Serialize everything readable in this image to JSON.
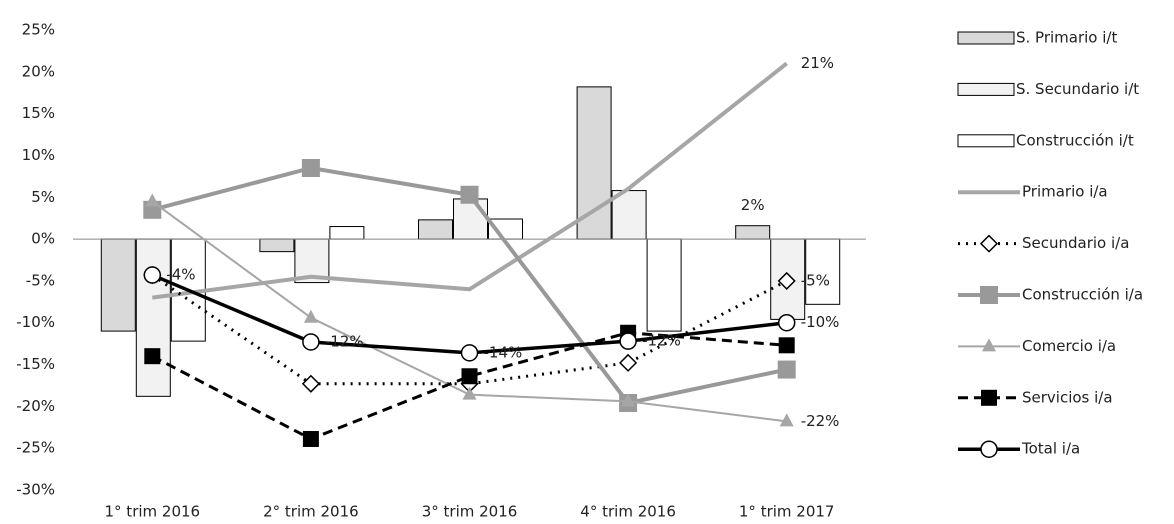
{
  "chart_data": {
    "type": "combo",
    "categories": [
      "1° trim 2016",
      "2° trim 2016",
      "3° trim 2016",
      "4° trim 2016",
      "1° trim 2017"
    ],
    "ylim": [
      -30,
      25
    ],
    "yticks": [
      {
        "value": -30,
        "label": "-30%"
      },
      {
        "value": -25,
        "label": "-25%"
      },
      {
        "value": -20,
        "label": "-20%"
      },
      {
        "value": -15,
        "label": "-15%"
      },
      {
        "value": -10,
        "label": "-10%"
      },
      {
        "value": -5,
        "label": "-5%"
      },
      {
        "value": 0,
        "label": "0%"
      },
      {
        "value": 5,
        "label": "5%"
      },
      {
        "value": 10,
        "label": "10%"
      },
      {
        "value": 15,
        "label": "15%"
      },
      {
        "value": 20,
        "label": "20%"
      },
      {
        "value": 25,
        "label": "25%"
      }
    ],
    "legend": "right",
    "series": [
      {
        "name": "S. Primario i/t",
        "type": "bar",
        "color": "#d9d9d9",
        "values": [
          -11,
          -1.5,
          2.3,
          18.2,
          1.6
        ],
        "value_labels": [
          null,
          null,
          null,
          null,
          "2%"
        ]
      },
      {
        "name": "S. Secundario i/t",
        "type": "bar",
        "color": "#f2f2f2",
        "values": [
          -18.8,
          -5.2,
          4.8,
          5.8,
          -9.6
        ]
      },
      {
        "name": "Construcción i/t",
        "type": "bar",
        "color": "#ffffff",
        "values": [
          -12.2,
          1.5,
          2.4,
          -11,
          -7.8
        ]
      },
      {
        "name": "Primario i/a",
        "type": "line",
        "color": "#a6a6a6",
        "width": 4,
        "marker": "none",
        "values": [
          -7,
          -4.5,
          -6,
          6,
          21
        ],
        "value_labels": [
          null,
          null,
          null,
          null,
          "21%"
        ]
      },
      {
        "name": "Secundario i/a",
        "type": "line",
        "color": "#000000",
        "width": 3,
        "dash": "dotted",
        "marker": "diamond",
        "values": [
          -4.3,
          -17.3,
          -17.3,
          -14.8,
          -5
        ],
        "value_labels": [
          null,
          null,
          null,
          null,
          "-5%"
        ]
      },
      {
        "name": "Construcción i/a",
        "type": "line",
        "color": "#999999",
        "width": 4,
        "marker": "square",
        "values": [
          3.5,
          8.5,
          5.3,
          -19.6,
          -15.6
        ]
      },
      {
        "name": "Comercio i/a",
        "type": "line",
        "color": "#a6a6a6",
        "width": 2,
        "marker": "triangle",
        "values": [
          4.5,
          -9.4,
          -18.6,
          -19.4,
          -21.8
        ],
        "value_labels": [
          null,
          null,
          null,
          null,
          "-22%"
        ]
      },
      {
        "name": "Servicios i/a",
        "type": "line",
        "color": "#000000",
        "width": 3,
        "dash": "dashed",
        "marker": "filled-square",
        "values": [
          -14,
          -23.9,
          -16.4,
          -11.2,
          -12.7
        ]
      },
      {
        "name": "Total i/a",
        "type": "line",
        "color": "#000000",
        "width": 3.5,
        "marker": "circle",
        "values": [
          -4.3,
          -12.3,
          -13.6,
          -12.2,
          -10
        ],
        "value_labels": [
          "-4%",
          "-12%",
          "-14%",
          "-12%",
          "-10%"
        ]
      }
    ]
  }
}
